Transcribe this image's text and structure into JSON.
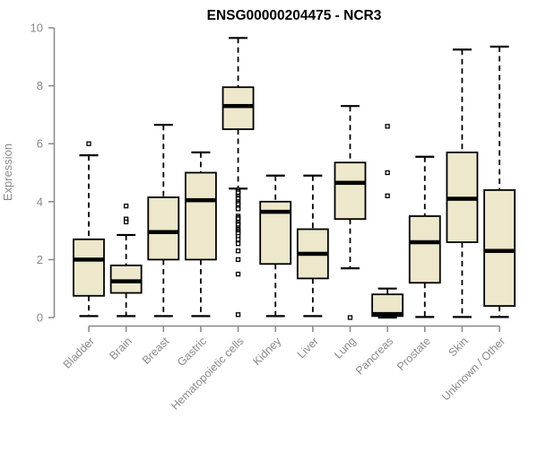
{
  "chart_data": {
    "type": "boxplot",
    "title": "ENSG00000204475 - NCR3",
    "ylabel": "Expression",
    "xlabel": "",
    "ylim": [
      0,
      10
    ],
    "yticks": [
      0,
      2,
      4,
      6,
      8,
      10
    ],
    "grid": false,
    "legend": false,
    "categories": [
      "Bladder",
      "Brain",
      "Breast",
      "Gastric",
      "Hematopoietic cells",
      "Kidney",
      "Liver",
      "Lung",
      "Pancreas",
      "Prostate",
      "Skin",
      "Unknown / Other"
    ],
    "series": [
      {
        "name": "Bladder",
        "whisker_low": 0.05,
        "q1": 0.75,
        "median": 2.0,
        "q3": 2.7,
        "whisker_high": 5.6,
        "outliers": [
          6.0
        ]
      },
      {
        "name": "Brain",
        "whisker_low": 0.05,
        "q1": 0.85,
        "median": 1.25,
        "q3": 1.8,
        "whisker_high": 2.85,
        "outliers": [
          3.85,
          3.4,
          3.3
        ]
      },
      {
        "name": "Breast",
        "whisker_low": 0.05,
        "q1": 2.0,
        "median": 2.95,
        "q3": 4.15,
        "whisker_high": 6.65,
        "outliers": []
      },
      {
        "name": "Gastric",
        "whisker_low": 0.05,
        "q1": 2.0,
        "median": 4.05,
        "q3": 5.0,
        "whisker_high": 5.7,
        "outliers": []
      },
      {
        "name": "Hematopoietic cells",
        "whisker_low": 4.45,
        "q1": 6.5,
        "median": 7.3,
        "q3": 7.95,
        "whisker_high": 9.65,
        "outliers": [
          4.4,
          4.35,
          4.3,
          4.2,
          4.15,
          4.1,
          4.0,
          3.95,
          3.9,
          3.8,
          3.75,
          3.5,
          3.45,
          3.4,
          3.3,
          3.25,
          3.2,
          3.1,
          3.05,
          3.0,
          2.95,
          2.9,
          2.8,
          2.7,
          2.55,
          2.3,
          2.0,
          1.5,
          0.1
        ]
      },
      {
        "name": "Kidney",
        "whisker_low": 0.05,
        "q1": 1.85,
        "median": 3.65,
        "q3": 4.0,
        "whisker_high": 4.9,
        "outliers": []
      },
      {
        "name": "Liver",
        "whisker_low": 0.05,
        "q1": 1.35,
        "median": 2.2,
        "q3": 3.05,
        "whisker_high": 4.9,
        "outliers": []
      },
      {
        "name": "Lung",
        "whisker_low": 1.7,
        "q1": 3.4,
        "median": 4.65,
        "q3": 5.35,
        "whisker_high": 7.3,
        "outliers": [
          0.0
        ]
      },
      {
        "name": "Pancreas",
        "whisker_low": 0.0,
        "q1": 0.05,
        "median": 0.12,
        "q3": 0.8,
        "whisker_high": 1.0,
        "outliers": [
          6.6,
          5.0,
          4.2
        ]
      },
      {
        "name": "Prostate",
        "whisker_low": 0.02,
        "q1": 1.2,
        "median": 2.6,
        "q3": 3.5,
        "whisker_high": 5.55,
        "outliers": []
      },
      {
        "name": "Skin",
        "whisker_low": 0.02,
        "q1": 2.6,
        "median": 4.1,
        "q3": 5.7,
        "whisker_high": 9.25,
        "outliers": []
      },
      {
        "name": "Unknown / Other",
        "whisker_low": 0.02,
        "q1": 0.4,
        "median": 2.3,
        "q3": 4.4,
        "whisker_high": 9.35,
        "outliers": []
      }
    ],
    "colors": {
      "box_fill": "#ede8cb",
      "box_border": "#000000",
      "median": "#000000",
      "whisker": "#000000",
      "outlier_stroke": "#000000",
      "outlier_fill": "#ffffff",
      "axis": "#888888",
      "tick_text": "#8a8a8a",
      "title": "#000000",
      "background": "#ffffff"
    }
  }
}
